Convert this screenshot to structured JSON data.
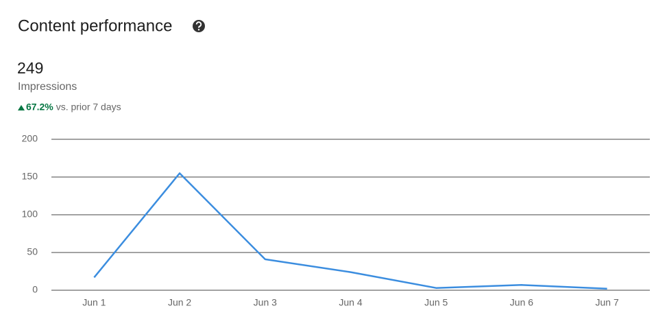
{
  "header": {
    "title": "Content performance",
    "metric": 249,
    "metric_label": "Impressions",
    "change": "67.2%",
    "change_label": "vs. prior 7 days"
  },
  "chart_data": {
    "type": "line",
    "categories": [
      "Jun 1",
      "Jun 2",
      "Jun 3",
      "Jun 4",
      "Jun 5",
      "Jun 6",
      "Jun 7"
    ],
    "values": [
      17,
      155,
      41,
      24,
      3,
      7,
      2
    ],
    "color": "#3b8ddf",
    "ylim": [
      0,
      200
    ],
    "yticks": [
      0,
      50,
      100,
      150,
      200
    ],
    "grid": true
  }
}
